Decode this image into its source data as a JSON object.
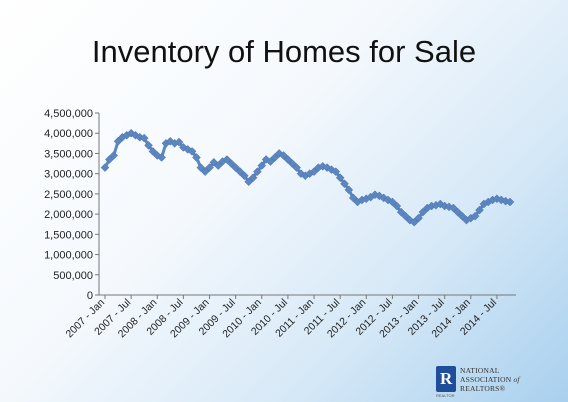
{
  "slide": {
    "title": "Inventory of Homes for Sale"
  },
  "logo": {
    "mark": "R",
    "sub": "REALTOR",
    "line1": "NATIONAL",
    "line2": "ASSOCIATION",
    "line2_suffix": "of",
    "line3": "REALTORS®",
    "color": "#1f4e9a"
  },
  "chart_data": {
    "type": "line",
    "title": "Inventory of Homes for Sale",
    "xlabel": "",
    "ylabel": "",
    "ylim": [
      0,
      4500000
    ],
    "yticks": [
      0,
      500000,
      1000000,
      1500000,
      2000000,
      2500000,
      3000000,
      3500000,
      4000000,
      4500000
    ],
    "ytick_labels": [
      "0",
      "500,000",
      "1,000,000",
      "1,500,000",
      "2,000,000",
      "2,500,000",
      "3,000,000",
      "3,500,000",
      "4,000,000",
      "4,500,000"
    ],
    "xtick_labels": [
      "2007 - Jan",
      "2007 - Jul",
      "2008 - Jan",
      "2008 - Jul",
      "2009 - Jan",
      "2009 - Jul",
      "2010 - Jan",
      "2010 - Jul",
      "2011 - Jan",
      "2011 - Jul",
      "2012 - Jan",
      "2012 - Jul",
      "2013 - Jan",
      "2013 - Jul",
      "2014 - Jan",
      "2014 - Jul"
    ],
    "grid": false,
    "legend": "none",
    "marker": "diamond",
    "line_color": "#5b86c0",
    "series": [
      {
        "values": [
          3150000,
          3350000,
          3450000,
          3800000,
          3900000,
          3950000,
          4000000,
          3950000,
          3900000,
          3880000,
          3700000,
          3550000,
          3450000,
          3400000,
          3750000,
          3800000,
          3750000,
          3780000,
          3650000,
          3600000,
          3550000,
          3400000,
          3150000,
          3050000,
          3150000,
          3280000,
          3200000,
          3300000,
          3350000,
          3250000,
          3150000,
          3050000,
          2950000,
          2800000,
          2900000,
          3050000,
          3200000,
          3350000,
          3300000,
          3400000,
          3500000,
          3450000,
          3350000,
          3250000,
          3150000,
          3000000,
          2950000,
          3000000,
          3050000,
          3150000,
          3180000,
          3150000,
          3100000,
          3050000,
          2900000,
          2750000,
          2600000,
          2400000,
          2300000,
          2350000,
          2380000,
          2420000,
          2480000,
          2450000,
          2400000,
          2350000,
          2300000,
          2200000,
          2050000,
          1950000,
          1850000,
          1800000,
          1900000,
          2050000,
          2150000,
          2200000,
          2220000,
          2250000,
          2200000,
          2180000,
          2150000,
          2050000,
          1950000,
          1850000,
          1900000,
          1950000,
          2100000,
          2250000,
          2300000,
          2350000,
          2380000,
          2350000,
          2320000,
          2300000
        ]
      }
    ]
  }
}
